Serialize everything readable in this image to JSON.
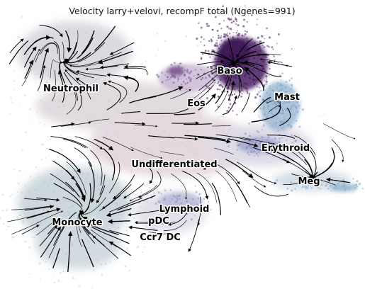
{
  "chart_data": {
    "type": "scatter",
    "subtype": "rna-velocity-streamline-embedding",
    "title": "Velocity larry+velovi, recompF total (Ngenes=991)",
    "axes_visible": false,
    "grid": false,
    "legend": "none",
    "cell_density_color_low": "#d7dde3",
    "cell_density_color_high": "#3f1d5c",
    "streamline_color": "#000000",
    "clusters": [
      {
        "name": "Baso",
        "color": "#4b1f63",
        "density": "high"
      },
      {
        "name": "Mast",
        "color": "#7fa3c4",
        "density": "medium"
      },
      {
        "name": "Eos",
        "color": "#8a5f9e",
        "density": "medium"
      },
      {
        "name": "Neutrophil",
        "color": "#c9bfcc",
        "density": "low"
      },
      {
        "name": "Erythroid",
        "color": "#7d82bb",
        "density": "medium"
      },
      {
        "name": "Meg",
        "color": "#8fb0c9",
        "density": "low"
      },
      {
        "name": "Undifferentiated",
        "color": "#dacbd2",
        "density": "low"
      },
      {
        "name": "Lymphoid",
        "color": "#8b90c2",
        "density": "low"
      },
      {
        "name": "Monocyte",
        "color": "#b3c3cc",
        "density": "medium"
      },
      {
        "name": "pDC",
        "color": "#cdd2e0",
        "density": "low"
      },
      {
        "name": "Ccr7 DC",
        "color": "#d9dbe5",
        "density": "low"
      }
    ]
  }
}
